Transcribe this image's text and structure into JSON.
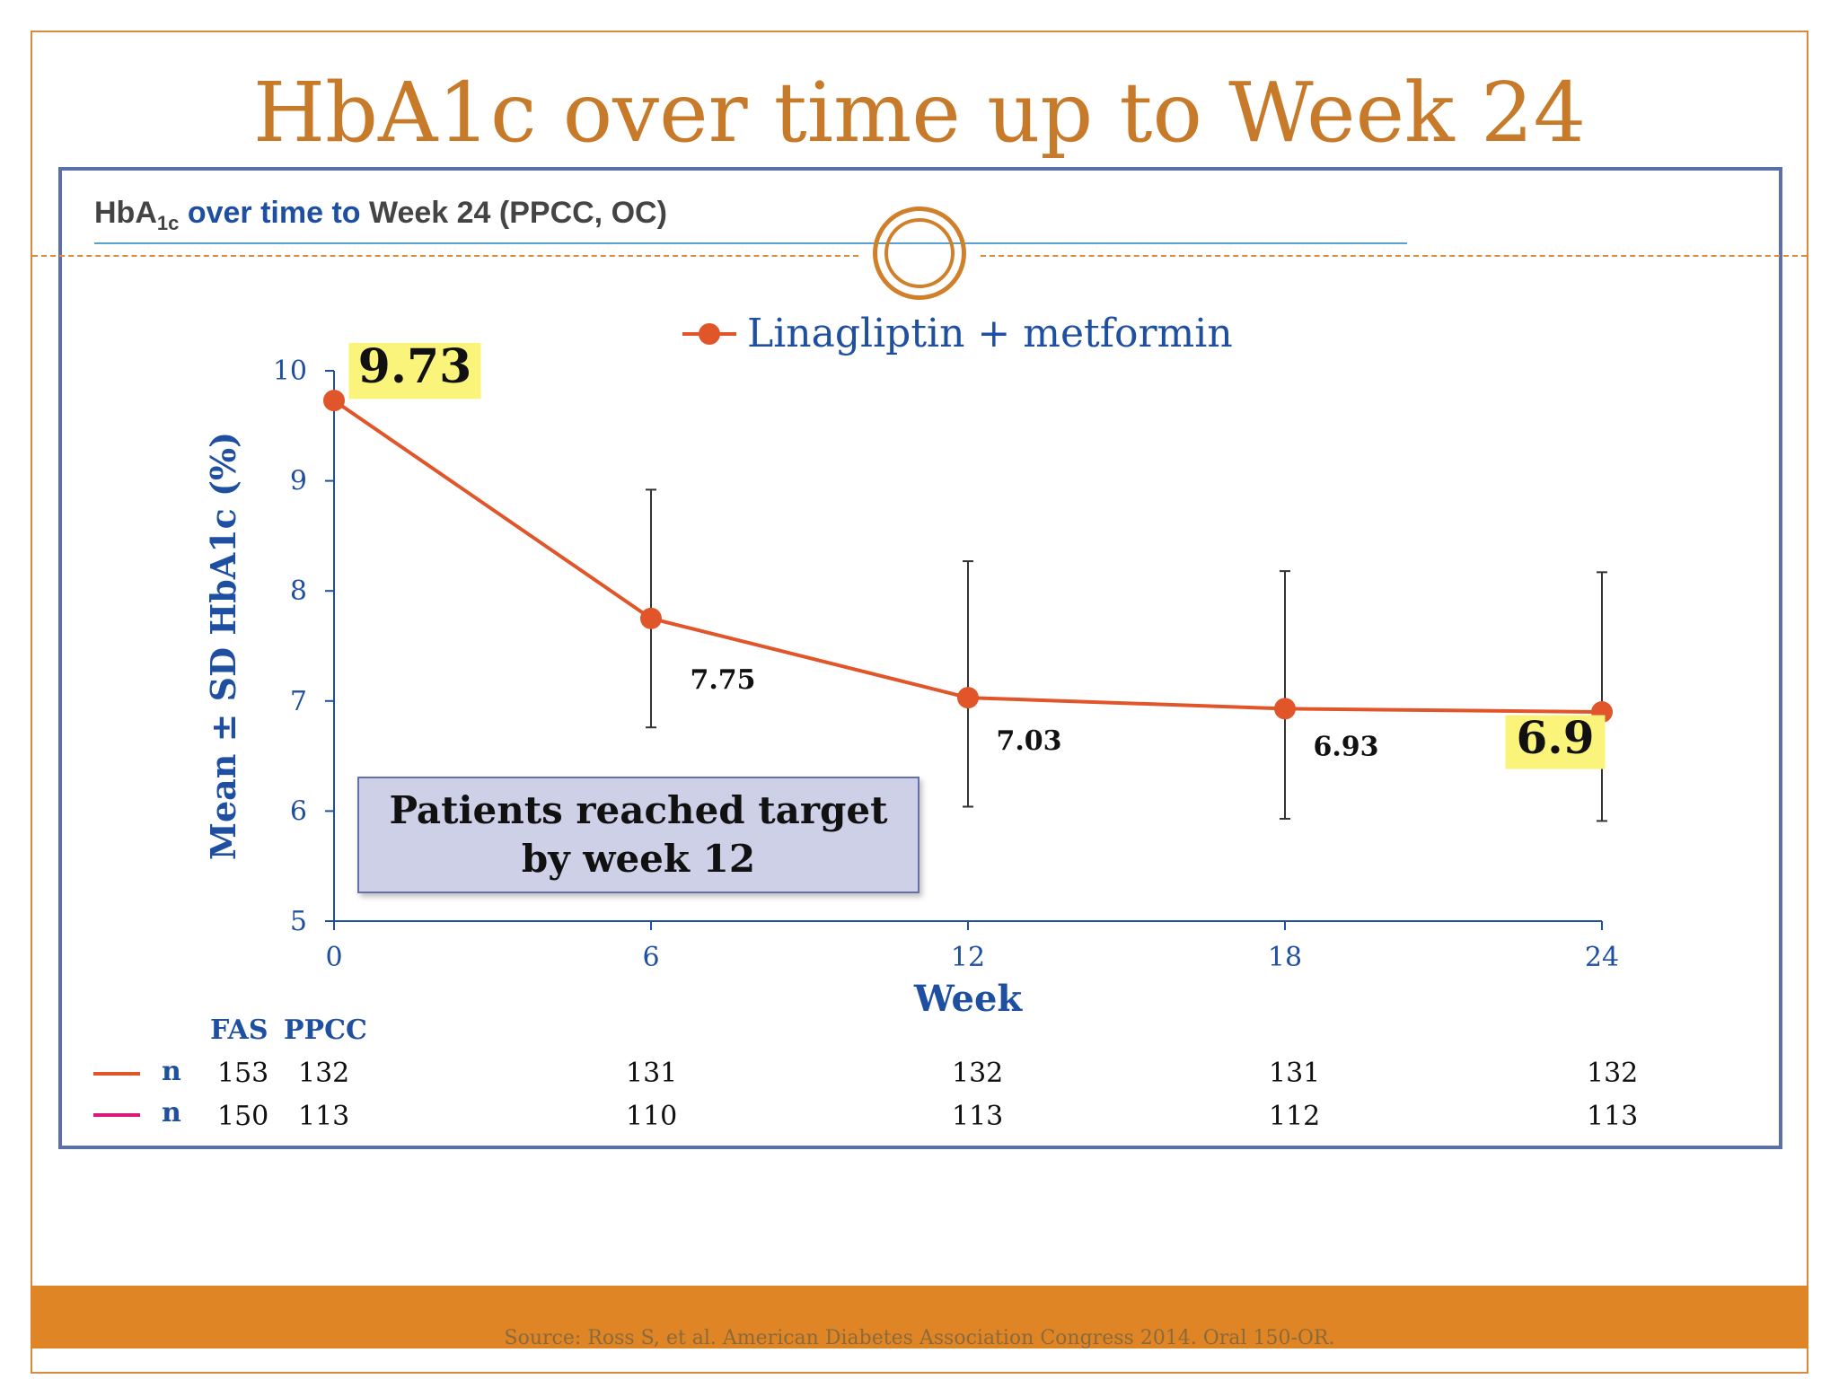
{
  "slide": {
    "title": "HbA1c over time up to Week 24",
    "source": "Source: Ross S, et al. American Diabetes Association Congress 2014. Oral 150-OR."
  },
  "panel": {
    "subtitle_part1": "HbA",
    "subtitle_sub": "1c",
    "subtitle_part2": " over time to ",
    "subtitle_part3": "Week 24 (PPCC, OC)"
  },
  "callout": {
    "text": "Patients reached target by week 12"
  },
  "colors": {
    "series": "#e0562a",
    "series2": "#d81b78",
    "axis": "#1f4fa0",
    "highlight": "#faf47a",
    "title": "#c77b2a"
  },
  "chart_data": {
    "type": "line",
    "title": "",
    "xlabel": "Week",
    "ylabel": "Mean ± SD HbA1c (%)",
    "x": [
      0,
      6,
      12,
      18,
      24
    ],
    "xlim": [
      0,
      24
    ],
    "ylim": [
      5,
      10
    ],
    "yticks": [
      "5",
      "6",
      "7",
      "8",
      "9",
      "10"
    ],
    "xticks": [
      "0",
      "6",
      "12",
      "18",
      "24"
    ],
    "series": [
      {
        "name": "Linagliptin + metformin",
        "values": [
          9.73,
          7.75,
          7.03,
          6.93,
          6.9
        ],
        "sd_upper": [
          null,
          8.92,
          8.27,
          8.18,
          8.17
        ],
        "sd_lower": [
          null,
          6.76,
          6.04,
          5.93,
          5.91
        ],
        "data_labels": [
          "9.73",
          "7.75",
          "7.03",
          "6.93",
          "6.9"
        ],
        "highlighted_labels": [
          true,
          false,
          false,
          false,
          true
        ]
      }
    ],
    "legend_position": "top-center",
    "grid": false
  },
  "n_table": {
    "header_fas": "FAS",
    "header_ppcc": "PPCC",
    "rows": [
      {
        "label": "n",
        "fas": "153",
        "values": [
          "132",
          "131",
          "132",
          "131",
          "132"
        ]
      },
      {
        "label": "n",
        "fas": "150",
        "values": [
          "113",
          "110",
          "113",
          "112",
          "113"
        ]
      }
    ]
  }
}
